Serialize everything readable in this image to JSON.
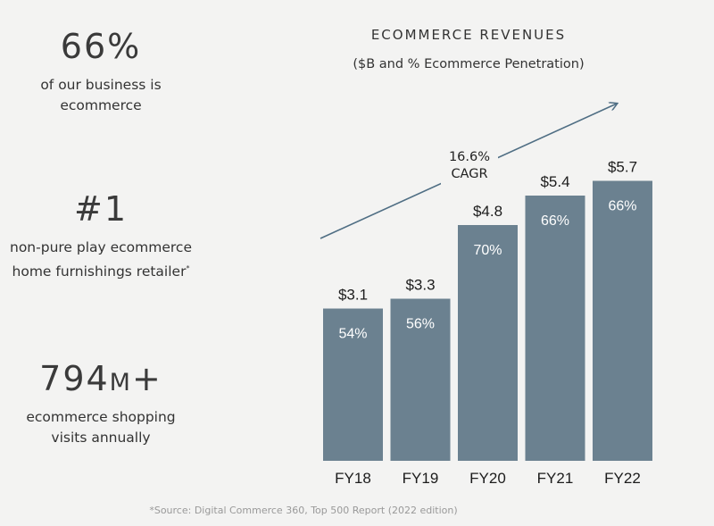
{
  "stats": [
    {
      "value": "66%",
      "desc_line1": "of our business is",
      "desc_line2": "ecommerce"
    },
    {
      "value": "#1",
      "desc_line1": "non-pure play ecommerce",
      "desc_line2": "home furnishings retailer",
      "footnote_mark": "*"
    },
    {
      "value": "794m+",
      "desc_line1": "ecommerce shopping",
      "desc_line2": "visits annually"
    }
  ],
  "source_note": "*Source: Digital Commerce 360, Top 500 Report  (2022 edition)",
  "chart_data": {
    "type": "bar",
    "title": "ECOMMERCE REVENUES",
    "subtitle": "($B and % Ecommerce Penetration)",
    "categories": [
      "FY18",
      "FY19",
      "FY20",
      "FY21",
      "FY22"
    ],
    "values": [
      3.1,
      3.3,
      4.8,
      5.4,
      5.7
    ],
    "value_labels": [
      "$3.1",
      "$3.3",
      "$4.8",
      "$5.4",
      "$5.7"
    ],
    "penetration_labels": [
      "54%",
      "56%",
      "70%",
      "66%",
      "66%"
    ],
    "ylim": [
      0,
      6.6
    ],
    "bar_color": "#6b8190",
    "arrow_color": "#4f6e84",
    "annotation": {
      "line1": "16.6%",
      "line2": "CAGR"
    }
  }
}
